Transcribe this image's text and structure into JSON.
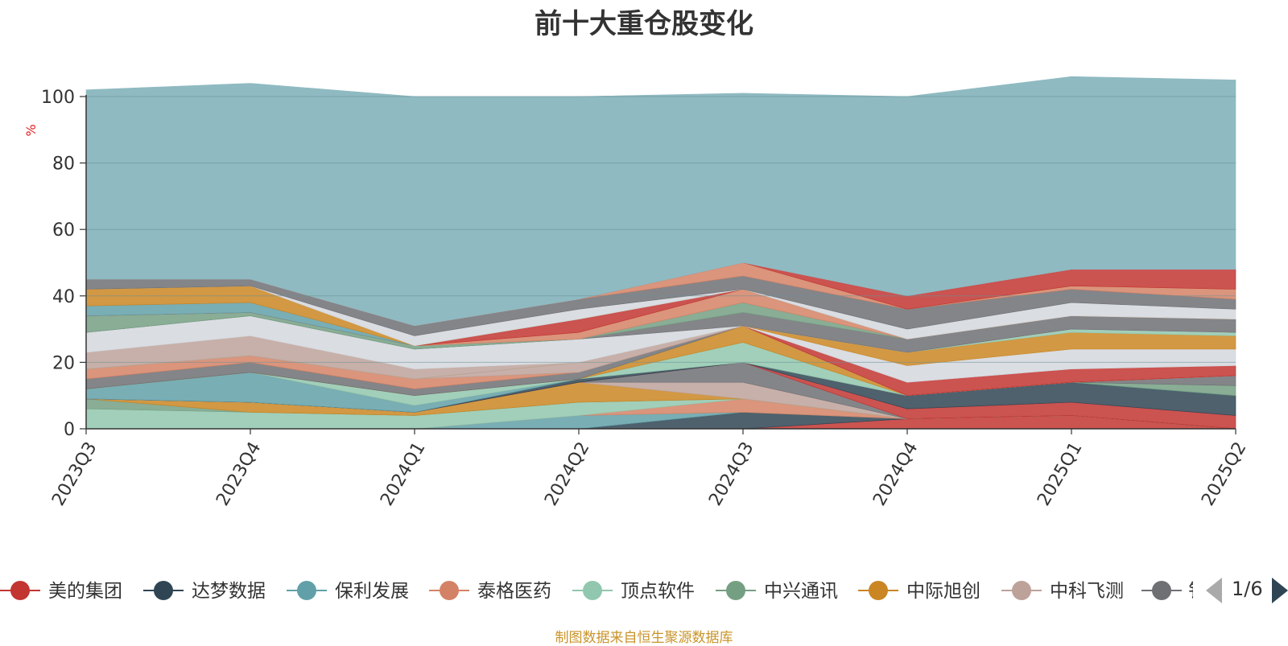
{
  "chart_data": {
    "type": "area",
    "title": "前十大重仓股变化",
    "ylabel": "%",
    "ylim": [
      0,
      100
    ],
    "yticks": [
      0,
      20,
      40,
      60,
      80,
      100
    ],
    "grid": true,
    "stacked": true,
    "categories": [
      "2023Q3",
      "2023Q4",
      "2024Q1",
      "2024Q2",
      "2024Q3",
      "2024Q4",
      "2025Q1",
      "2025Q2"
    ],
    "series": [
      {
        "name": "美的集团",
        "color": "#c23531",
        "values": [
          0,
          0,
          0,
          0,
          0,
          3,
          4,
          0
        ]
      },
      {
        "name": "达梦数据",
        "color": "#2f4554",
        "values": [
          0,
          0,
          0,
          0,
          5,
          0,
          0,
          0
        ]
      },
      {
        "name": "保利发展",
        "color": "#61a0a8",
        "values": [
          0,
          0,
          0,
          4,
          0,
          0,
          0,
          0
        ]
      },
      {
        "name": "泰格医药",
        "color": "#d48265",
        "values": [
          0,
          0,
          0,
          0,
          4,
          0,
          0,
          0
        ]
      },
      {
        "name": "顶点软件",
        "color": "#91c7ae",
        "values": [
          6,
          5,
          4,
          4,
          0,
          0,
          0,
          0
        ]
      },
      {
        "name": "中兴通讯",
        "color": "#749f83",
        "values": [
          3,
          0,
          0,
          0,
          0,
          0,
          0,
          0
        ]
      },
      {
        "name": "中际旭创",
        "color": "#ca8622",
        "values": [
          0,
          3,
          1,
          6,
          0,
          0,
          0,
          0
        ]
      },
      {
        "name": "中科飞测",
        "color": "#bda29a",
        "values": [
          0,
          0,
          0,
          0,
          5,
          0,
          0,
          0
        ]
      },
      {
        "name": null,
        "color": "#6e7074",
        "values": [
          0,
          0,
          0,
          0,
          6,
          0,
          0,
          0
        ]
      },
      {
        "name": null,
        "color": "#c23531",
        "values": [
          0,
          0,
          0,
          0,
          0,
          3,
          4,
          4
        ]
      },
      {
        "name": null,
        "color": "#2f4554",
        "values": [
          0,
          0,
          0,
          1,
          0,
          4,
          6,
          6
        ]
      },
      {
        "name": null,
        "color": "#61a0a8",
        "values": [
          3,
          9,
          2,
          0,
          0,
          0,
          0,
          0
        ]
      },
      {
        "name": null,
        "color": "#749f83",
        "values": [
          0,
          0,
          0,
          0,
          0,
          0,
          0,
          3
        ]
      },
      {
        "name": null,
        "color": "#6e7074",
        "values": [
          0,
          0,
          0,
          0,
          0,
          0,
          0,
          3
        ]
      },
      {
        "name": null,
        "color": "#91c7ae",
        "values": [
          0,
          0,
          3,
          0,
          6,
          0,
          0,
          0
        ]
      },
      {
        "name": null,
        "color": "#ca8622",
        "values": [
          0,
          0,
          0,
          0,
          5,
          0,
          0,
          0
        ]
      },
      {
        "name": null,
        "color": "#6e7074",
        "values": [
          3,
          3,
          2,
          2,
          0,
          0,
          0,
          0
        ]
      },
      {
        "name": null,
        "color": "#d48265",
        "values": [
          3,
          2,
          3,
          0,
          0,
          0,
          0,
          0
        ]
      },
      {
        "name": null,
        "color": "#bda29a",
        "values": [
          0,
          0,
          0,
          3,
          0,
          0,
          0,
          0
        ]
      },
      {
        "name": null,
        "color": "#c23531",
        "values": [
          0,
          0,
          0,
          0,
          0,
          4,
          4,
          3
        ]
      },
      {
        "name": null,
        "color": "#d3d7dd",
        "values": [
          0,
          0,
          0,
          0,
          0,
          5,
          6,
          5
        ]
      },
      {
        "name": null,
        "color": "#ca8622",
        "values": [
          0,
          0,
          0,
          0,
          0,
          4,
          5,
          4
        ]
      },
      {
        "name": null,
        "color": "#91c7ae",
        "values": [
          0,
          0,
          0,
          0,
          0,
          0,
          1,
          1
        ]
      },
      {
        "name": null,
        "color": "#bda29a",
        "values": [
          5,
          6,
          3,
          0,
          0,
          0,
          0,
          0
        ]
      },
      {
        "name": null,
        "color": "#d3d7dd",
        "values": [
          6,
          6,
          6,
          7,
          0,
          0,
          0,
          0
        ]
      },
      {
        "name": null,
        "color": "#6e7074",
        "values": [
          0,
          0,
          0,
          0,
          4,
          4,
          4,
          4
        ]
      },
      {
        "name": null,
        "color": "#749f83",
        "values": [
          5,
          1,
          1,
          0,
          3,
          0,
          0,
          0
        ]
      },
      {
        "name": null,
        "color": "#d48265",
        "values": [
          0,
          0,
          0,
          2,
          4,
          0,
          0,
          0
        ]
      },
      {
        "name": null,
        "color": "#c23531",
        "values": [
          0,
          0,
          0,
          4,
          0,
          0,
          0,
          0
        ]
      },
      {
        "name": null,
        "color": "#61a0a8",
        "values": [
          3,
          3,
          0,
          0,
          0,
          0,
          0,
          0
        ]
      },
      {
        "name": null,
        "color": "#ca8622",
        "values": [
          5,
          5,
          0,
          0,
          0,
          0,
          0,
          0
        ]
      },
      {
        "name": null,
        "color": "#d3d7dd",
        "values": [
          0,
          0,
          3,
          3,
          0,
          3,
          4,
          3
        ]
      },
      {
        "name": null,
        "color": "#6e7074",
        "values": [
          3,
          2,
          3,
          3,
          4,
          6,
          4,
          3
        ]
      },
      {
        "name": null,
        "color": "#d48265",
        "values": [
          0,
          0,
          0,
          0,
          4,
          0,
          1,
          3
        ]
      },
      {
        "name": null,
        "color": "#c23531",
        "values": [
          0,
          0,
          0,
          0,
          0,
          4,
          5,
          6
        ]
      },
      {
        "name": null,
        "color": "#8fbac1",
        "values": [
          57,
          59,
          69,
          61,
          51,
          60,
          58,
          57
        ]
      }
    ]
  },
  "legend": {
    "visible_items": [
      {
        "label": "美的集团",
        "color": "#c23531"
      },
      {
        "label": "达梦数据",
        "color": "#2f4554"
      },
      {
        "label": "保利发展",
        "color": "#61a0a8"
      },
      {
        "label": "泰格医药",
        "color": "#d48265"
      },
      {
        "label": "顶点软件",
        "color": "#91c7ae"
      },
      {
        "label": "中兴通讯",
        "color": "#749f83"
      },
      {
        "label": "中际旭创",
        "color": "#ca8622"
      },
      {
        "label": "中科飞测",
        "color": "#bda29a"
      }
    ],
    "clipped_item": {
      "label": "钅",
      "color": "#6e7074"
    },
    "page": "1/6",
    "prev_icon": "triangle-left-icon",
    "next_icon": "triangle-right-icon"
  },
  "source_note": "制图数据来自恒生聚源数据库"
}
